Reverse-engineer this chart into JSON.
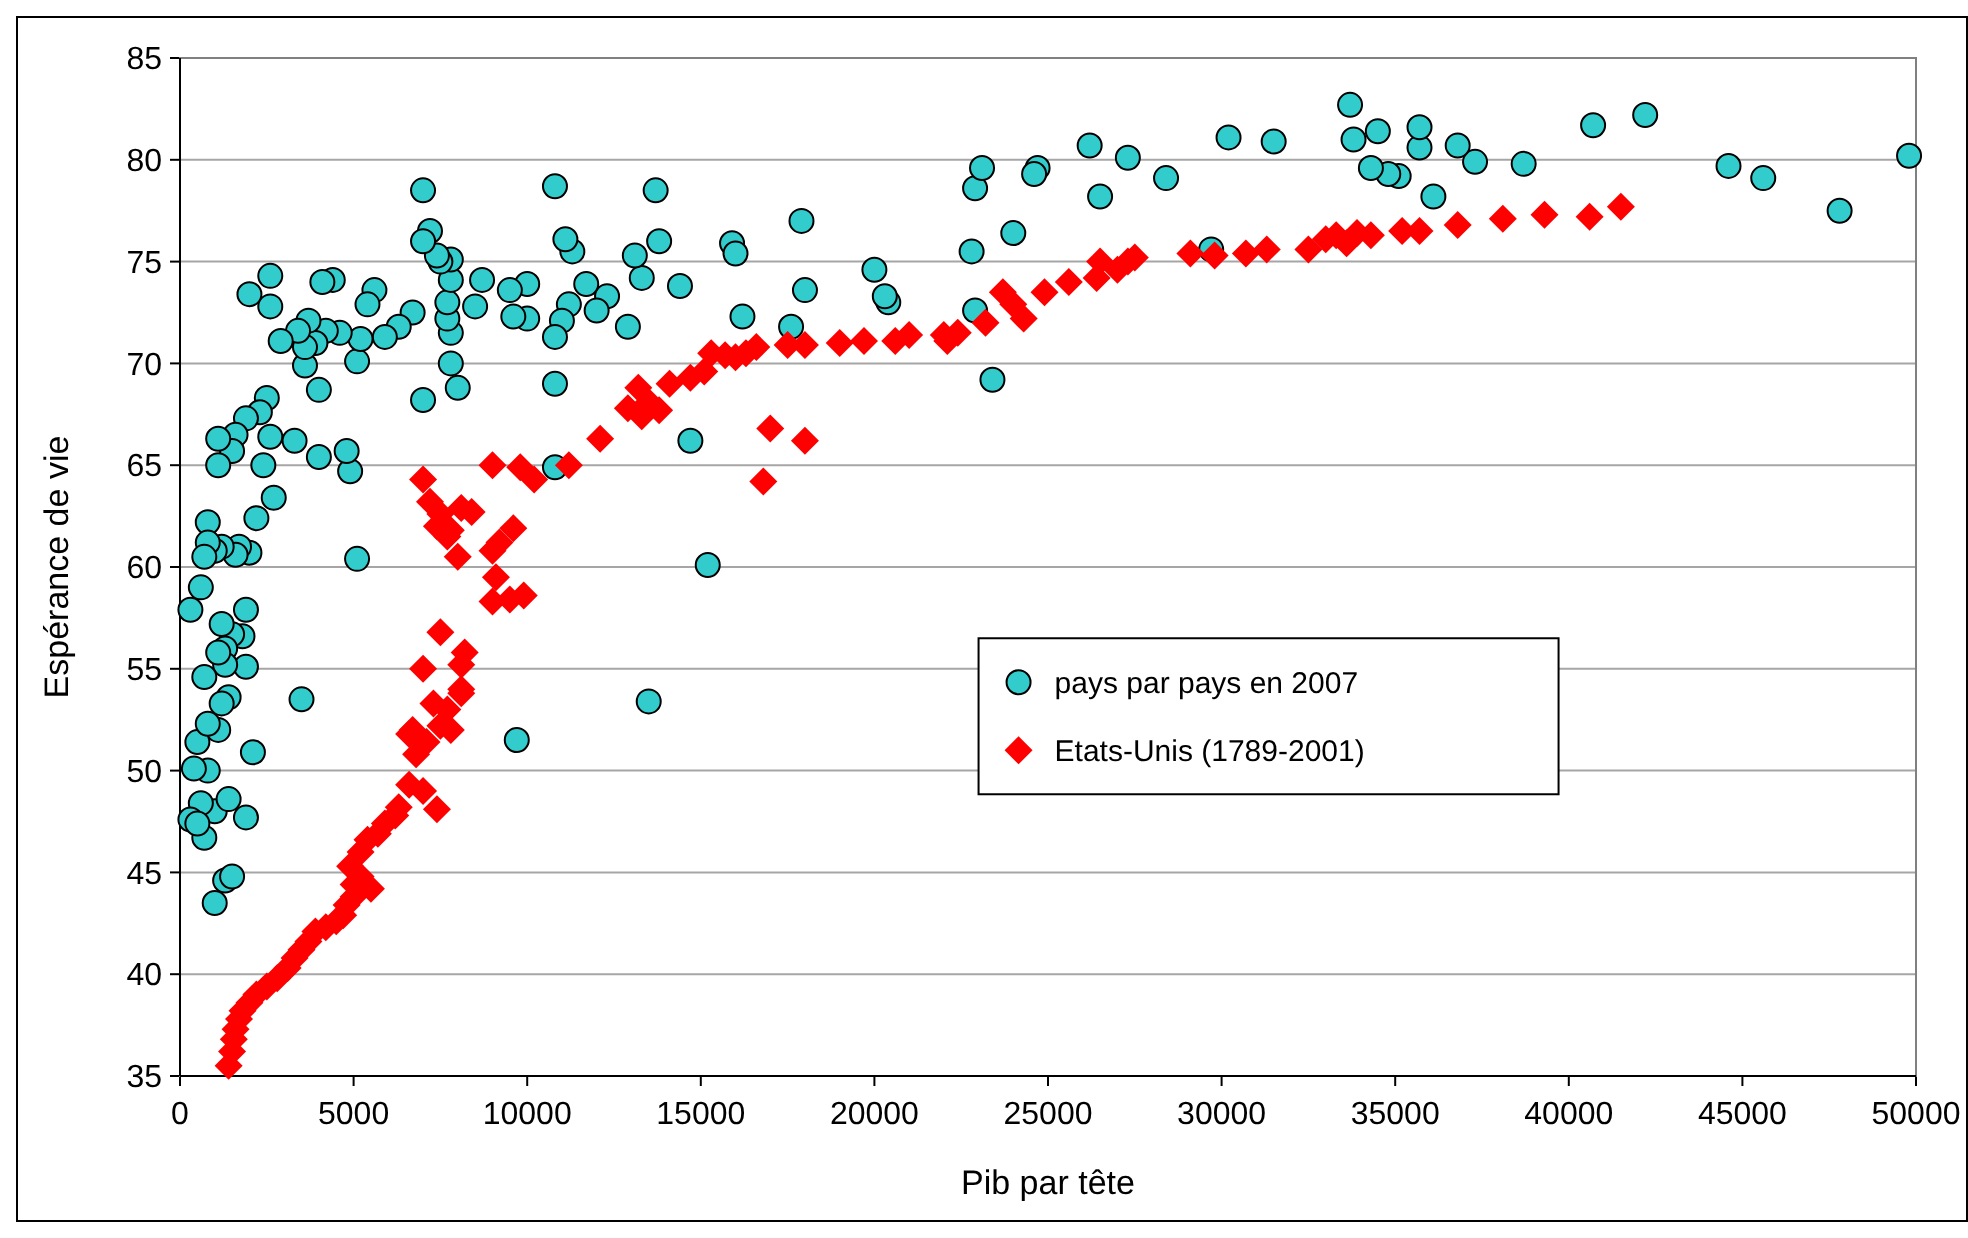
{
  "chart_data": {
    "type": "scatter",
    "xlabel": "Pib par tête",
    "ylabel": "Espérance de vie",
    "xlim": [
      0,
      50000
    ],
    "xticks": [
      0,
      5000,
      10000,
      15000,
      20000,
      25000,
      30000,
      35000,
      40000,
      45000,
      50000
    ],
    "ylim": [
      35,
      85
    ],
    "yticks": [
      35,
      40,
      45,
      50,
      55,
      60,
      65,
      70,
      75,
      80,
      85
    ],
    "grid": "y",
    "legend": "right",
    "series": [
      {
        "name": "pays par pays en 2007",
        "color": "#33cccc",
        "marker": "circle",
        "x": [
          49800,
          44600,
          45600,
          47800,
          42200,
          40700,
          38700,
          37300,
          36800,
          36100,
          35700,
          35700,
          35100,
          34500,
          34800,
          34300,
          33800,
          33700,
          31500,
          30200,
          29700,
          28400,
          27300,
          26500,
          26200,
          24700,
          24600,
          24000,
          23400,
          22900,
          22800,
          22900,
          23100,
          20400,
          20300,
          20000,
          18000,
          17900,
          17600,
          16200,
          15900,
          16000,
          15200,
          14700,
          14400,
          13800,
          13700,
          13500,
          13300,
          13100,
          12900,
          12300,
          12000,
          11700,
          11300,
          11100,
          11200,
          11000,
          10800,
          10800,
          10800,
          10800,
          10000,
          10000,
          9500,
          9600,
          9700,
          8700,
          8500,
          8000,
          7800,
          7800,
          7700,
          7700,
          7800,
          7800,
          7500,
          7400,
          7200,
          7000,
          7000,
          7000,
          6700,
          6300,
          5900,
          5600,
          5400,
          5100,
          5200,
          5100,
          4900,
          4800,
          4600,
          4400,
          4200,
          4100,
          4000,
          4000,
          3900,
          3700,
          3600,
          3600,
          3400,
          3300,
          3500,
          2900,
          2700,
          2600,
          2600,
          2600,
          2500,
          2400,
          2300,
          2200,
          2100,
          2000,
          1900,
          2000,
          1900,
          1900,
          1800,
          1900,
          1700,
          1600,
          1500,
          1600,
          1500,
          1400,
          1300,
          1300,
          1200,
          1200,
          1100,
          1100,
          1000,
          1100,
          1000,
          1000,
          1300,
          1500,
          1400,
          800,
          800,
          700,
          700,
          600,
          500,
          800,
          800,
          600,
          700,
          400,
          300,
          300,
          500,
          1100,
          1200
        ],
        "values": [
          80.2,
          79.7,
          79.1,
          77.5,
          82.2,
          81.7,
          79.8,
          79.9,
          80.7,
          78.2,
          80.6,
          81.6,
          79.2,
          81.4,
          79.3,
          79.6,
          81.0,
          82.7,
          80.9,
          81.1,
          75.6,
          79.1,
          80.1,
          78.2,
          80.7,
          79.6,
          79.3,
          76.4,
          69.2,
          72.6,
          75.5,
          78.6,
          79.6,
          73.0,
          73.3,
          74.6,
          73.6,
          77.0,
          71.8,
          72.3,
          75.9,
          75.4,
          60.1,
          66.2,
          73.8,
          76.0,
          78.5,
          53.4,
          74.2,
          75.3,
          71.8,
          73.3,
          72.6,
          73.9,
          75.5,
          76.1,
          72.9,
          72.1,
          71.3,
          69.0,
          78.7,
          64.9,
          73.9,
          72.2,
          73.6,
          72.3,
          51.5,
          74.1,
          72.8,
          68.8,
          70.0,
          71.5,
          72.2,
          73.0,
          74.1,
          75.1,
          75.0,
          75.3,
          76.5,
          78.5,
          76.0,
          68.2,
          72.5,
          71.8,
          71.3,
          73.6,
          72.9,
          70.1,
          71.2,
          60.4,
          64.7,
          65.7,
          71.5,
          74.1,
          71.6,
          74.0,
          68.7,
          65.4,
          71.0,
          72.1,
          69.9,
          70.8,
          71.6,
          66.2,
          53.5,
          71.1,
          63.4,
          72.8,
          74.3,
          66.4,
          68.3,
          65.0,
          67.6,
          62.4,
          50.9,
          73.4,
          67.3,
          60.7,
          57.9,
          55.1,
          56.6,
          47.7,
          61.0,
          66.5,
          65.7,
          60.6,
          56.7,
          53.6,
          56.0,
          55.2,
          57.2,
          61.0,
          66.3,
          65.0,
          60.8,
          52.0,
          48.0,
          43.5,
          44.6,
          44.8,
          48.6,
          62.2,
          61.2,
          60.5,
          54.6,
          59.0,
          51.4,
          52.3,
          50.0,
          48.4,
          46.7,
          50.1,
          57.9,
          47.6,
          47.4,
          55.8,
          53.3
        ]
      },
      {
        "name": "Etats-Unis (1789-2001)",
        "color": "#ff0000",
        "marker": "diamond",
        "x": [
          1400,
          1500,
          1550,
          1600,
          1700,
          1800,
          2000,
          2200,
          2500,
          2800,
          3100,
          3300,
          3500,
          3700,
          3900,
          4200,
          4500,
          4700,
          4800,
          5000,
          5000,
          5200,
          5500,
          4900,
          5200,
          5400,
          5700,
          5900,
          6200,
          6300,
          6600,
          7000,
          6800,
          6700,
          7100,
          7300,
          7500,
          7700,
          7800,
          7400,
          8100,
          8100,
          8200,
          7000,
          7500,
          6600,
          8100,
          7000,
          7200,
          7500,
          7400,
          7800,
          8100,
          8400,
          8000,
          7700,
          9000,
          9800,
          9900,
          9500,
          9000,
          9200,
          9000,
          9600,
          9100,
          10200,
          11200,
          12100,
          12900,
          13200,
          13300,
          13500,
          13800,
          14100,
          14700,
          15100,
          15300,
          15700,
          16000,
          16300,
          16600,
          16800,
          17000,
          17500,
          18000,
          18000,
          19000,
          19700,
          20600,
          21000,
          22000,
          22100,
          22400,
          23200,
          23700,
          24000,
          24300,
          24900,
          25600,
          26500,
          26400,
          27000,
          27300,
          27500,
          29100,
          29800,
          30700,
          31300,
          32500,
          33000,
          33300,
          33600,
          33900,
          34300,
          35200,
          35700,
          36800,
          38100,
          39300,
          40600,
          41500
        ],
        "values": [
          35.5,
          36.2,
          36.8,
          37.3,
          37.8,
          38.2,
          38.6,
          39.0,
          39.4,
          39.8,
          40.3,
          40.8,
          41.2,
          41.6,
          42.1,
          42.3,
          42.6,
          42.9,
          43.4,
          43.8,
          44.4,
          44.8,
          44.2,
          45.3,
          46.0,
          46.6,
          46.9,
          47.4,
          47.8,
          48.2,
          49.3,
          49.0,
          50.8,
          52.0,
          51.4,
          53.3,
          52.2,
          53.0,
          52.0,
          48.1,
          54.0,
          55.2,
          55.8,
          55.0,
          56.8,
          51.8,
          53.8,
          64.3,
          63.2,
          62.6,
          62.0,
          61.8,
          62.9,
          62.7,
          60.5,
          61.5,
          65.0,
          64.9,
          58.6,
          58.4,
          58.3,
          61.2,
          60.8,
          61.9,
          59.5,
          64.3,
          65.0,
          66.3,
          67.8,
          68.8,
          67.4,
          68.1,
          67.7,
          69.0,
          69.3,
          69.6,
          70.5,
          70.4,
          70.3,
          70.5,
          70.8,
          64.2,
          66.8,
          70.9,
          66.2,
          70.9,
          71.0,
          71.1,
          71.1,
          71.4,
          71.4,
          71.1,
          71.5,
          72.0,
          73.5,
          72.9,
          72.2,
          73.5,
          74.0,
          75.0,
          74.2,
          74.6,
          75.0,
          75.2,
          75.4,
          75.3,
          75.4,
          75.6,
          75.6,
          76.1,
          76.3,
          75.9,
          76.4,
          76.3,
          76.5,
          76.5,
          76.8,
          77.1,
          77.3,
          77.2,
          77.7
        ]
      }
    ]
  }
}
